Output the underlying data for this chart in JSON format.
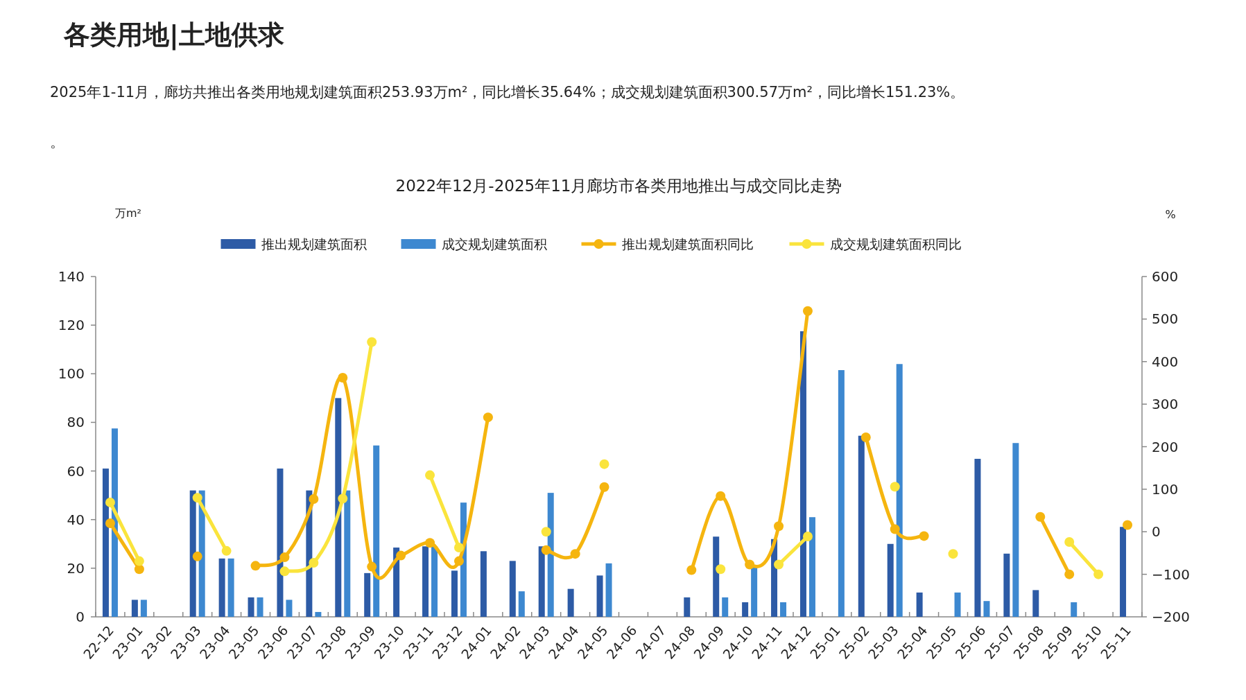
{
  "chart_data": {
    "type": "bar",
    "title": "各类用地|土地供求",
    "subtitle": "2022年12月-2025年11月廊坊市各类用地推出与成交同比走势",
    "annotations": [
      "2025年1-11月，廊坊共推出各类用地规划建筑面积253.93万m²，同比增长35.64%；成交规划建筑面积300.57万m²，同比增长151.23%。",
      "。"
    ],
    "ylabel": "万m²",
    "y2label": "%",
    "categories": [
      "22-12",
      "23-01",
      "23-02",
      "23-03",
      "23-04",
      "23-05",
      "23-06",
      "23-07",
      "23-08",
      "23-09",
      "23-10",
      "23-11",
      "23-12",
      "24-01",
      "24-02",
      "24-03",
      "24-04",
      "24-05",
      "24-06",
      "24-07",
      "24-08",
      "24-09",
      "24-10",
      "24-11",
      "24-12",
      "25-01",
      "25-02",
      "25-03",
      "25-04",
      "25-05",
      "25-06",
      "25-07",
      "25-08",
      "25-09",
      "25-10",
      "25-11"
    ],
    "series": [
      {
        "name": "推出规划建筑面积",
        "color": "#2d5ba6",
        "values": [
          61,
          7,
          null,
          52,
          24,
          8,
          61,
          52,
          90,
          18,
          28.5,
          29,
          19,
          27,
          23,
          29,
          11.5,
          17,
          null,
          null,
          8,
          33,
          6,
          32,
          117.5,
          null,
          74.5,
          30,
          10,
          null,
          65,
          26,
          11,
          null,
          null,
          37
        ]
      },
      {
        "name": "成交规划建筑面积",
        "color": "#3d88d0",
        "values": [
          77.5,
          7,
          null,
          52,
          24,
          8,
          7,
          2,
          52,
          70.5,
          null,
          29,
          47,
          null,
          10.5,
          51,
          null,
          22,
          null,
          null,
          null,
          8,
          21,
          6,
          41,
          101.5,
          null,
          104,
          null,
          10,
          6.5,
          71.5,
          null,
          6,
          null,
          null
        ]
      },
      {
        "name": "推出规划建筑面积同比",
        "type": "line",
        "axis": "y2",
        "color": "#f5b50f",
        "values": [
          20,
          -88,
          null,
          -58,
          null,
          -80,
          -60,
          77,
          362,
          -82,
          -56,
          -26,
          -69,
          269,
          null,
          -43,
          -52,
          105,
          null,
          null,
          -90,
          84,
          -77,
          13,
          519,
          null,
          222,
          6,
          -10,
          null,
          null,
          null,
          35,
          -100,
          null,
          16
        ]
      },
      {
        "name": "成交规划建筑面积同比",
        "type": "line",
        "axis": "y2",
        "color": "#fae43c",
        "values": [
          69,
          -69,
          null,
          80,
          -45,
          null,
          -93,
          -73,
          78,
          446,
          null,
          133,
          -37,
          null,
          null,
          0,
          null,
          159,
          null,
          null,
          null,
          -88,
          null,
          -77,
          -11,
          null,
          null,
          106,
          null,
          -52,
          null,
          null,
          null,
          -24,
          -100,
          null
        ]
      }
    ],
    "ylim": [
      0,
      140
    ],
    "yticks": [
      0,
      20,
      40,
      60,
      80,
      100,
      120,
      140
    ],
    "y2lim": [
      -200,
      600
    ],
    "y2ticks": [
      -200,
      -100,
      0,
      100,
      200,
      300,
      400,
      500,
      600
    ],
    "marker": "circle",
    "line_style": "solid",
    "legend": "top",
    "grid": false
  }
}
